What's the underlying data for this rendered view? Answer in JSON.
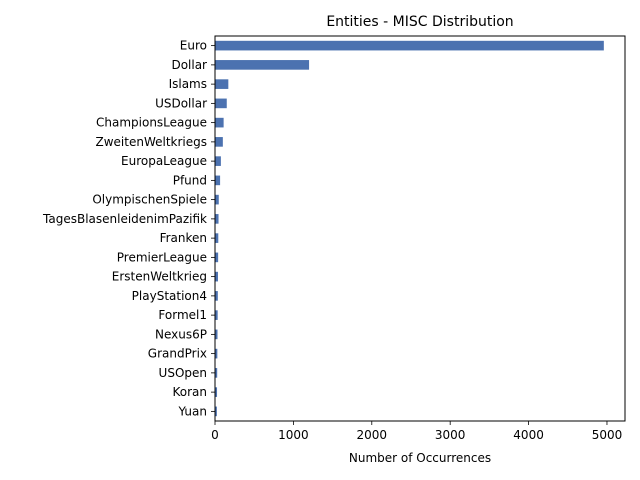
{
  "chart_data": {
    "type": "bar",
    "orientation": "horizontal",
    "title": "Entities - MISC Distribution",
    "xlabel": "Number of Occurrences",
    "ylabel": "",
    "categories": [
      "Euro",
      "Dollar",
      "Islams",
      "USDollar",
      "ChampionsLeague",
      "ZweitenWeltkriegs",
      "EuropaLeague",
      "Pfund",
      "OlympischenSpiele",
      "TagesBlasenleidenimPazifik",
      "Franken",
      "PremierLeague",
      "ErstenWeltkrieg",
      "PlayStation4",
      "Formel1",
      "Nexus6P",
      "GrandPrix",
      "USOpen",
      "Koran",
      "Yuan"
    ],
    "values": [
      4960,
      1200,
      170,
      150,
      110,
      100,
      75,
      65,
      48,
      45,
      42,
      40,
      38,
      36,
      34,
      32,
      30,
      28,
      26,
      24
    ],
    "xlim": [
      0,
      5230
    ],
    "xticks": [
      0,
      1000,
      2000,
      3000,
      4000,
      5000
    ],
    "xtick_labels": [
      "0",
      "1000",
      "2000",
      "3000",
      "4000",
      "5000"
    ],
    "bar_color": "#4c72b0",
    "grid": false,
    "legend": "none"
  }
}
